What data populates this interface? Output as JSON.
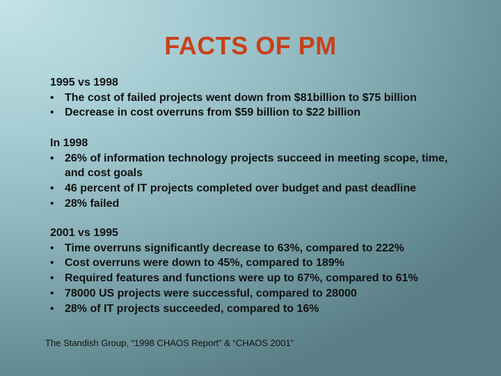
{
  "slide": {
    "title": "FACTS OF PM",
    "bullet_char": "•",
    "sections": [
      {
        "heading": "1995 vs 1998",
        "bullets": [
          "The cost of failed projects went down from $81billion to $75 billion",
          "Decrease in cost overruns from $59 billion to $22 billion"
        ]
      },
      {
        "heading": "In 1998",
        "bullets": [
          "26% of information technology projects succeed in meeting scope, time, and cost goals",
          "46 percent of IT projects completed over budget and past deadline",
          "28% failed"
        ]
      },
      {
        "heading": "2001 vs 1995",
        "bullets": [
          "Time overruns significantly decrease to 63%, compared to 222%",
          "Cost overruns were down to 45%, compared to 189%",
          "Required features and functions were up to 67%, compared to 61%",
          "78000 US projects were successful, compared to 28000",
          "28% of IT projects succeeded, compared to 16%"
        ]
      }
    ],
    "source": "The Standish Group, “1998 CHAOS Report” & “CHAOS 2001”"
  }
}
